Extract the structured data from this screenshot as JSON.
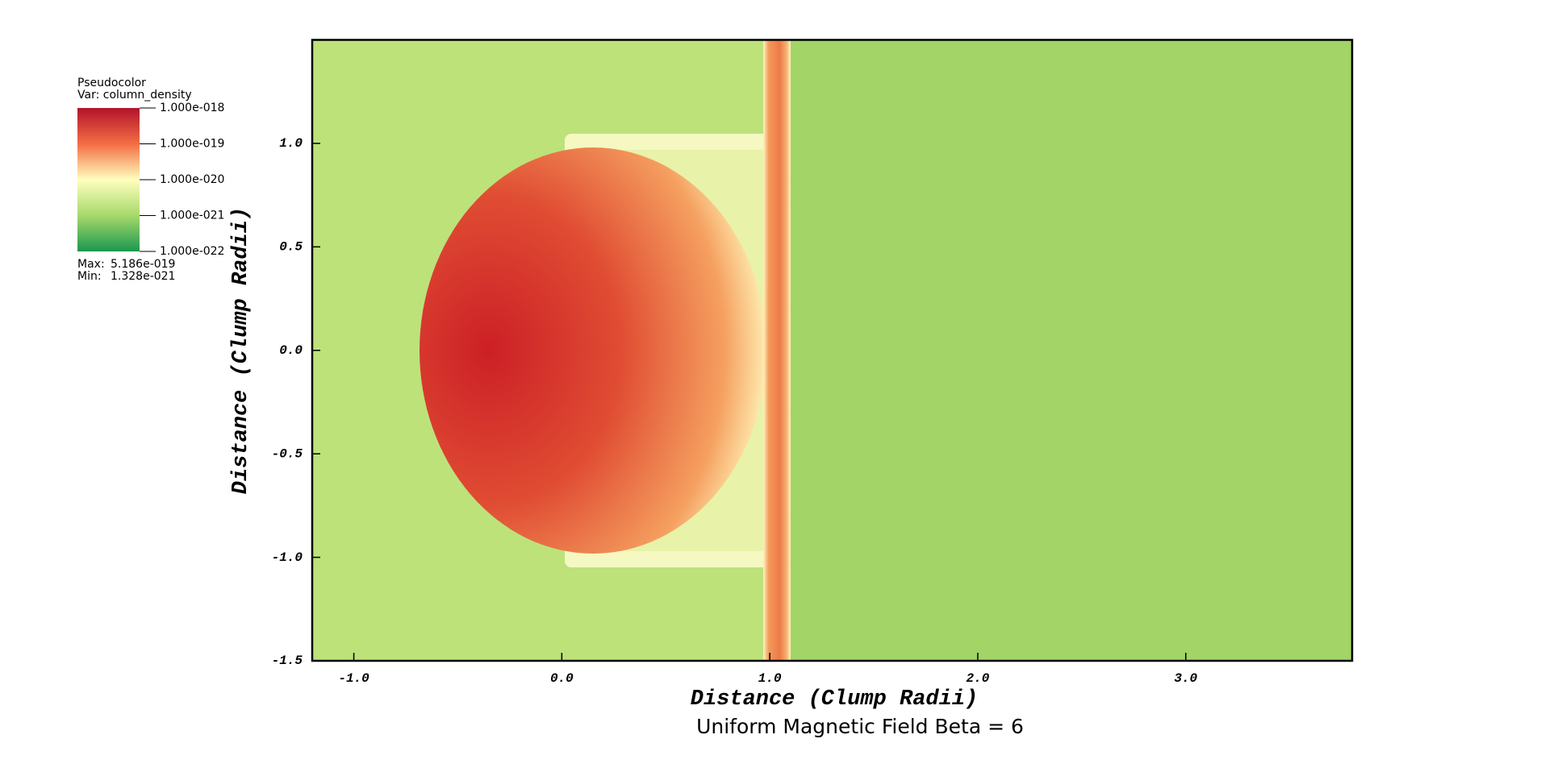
{
  "chart_data": {
    "type": "pseudocolor",
    "title": "Uniform Magnetic Field Beta = 6",
    "x_label": "Distance (Clump Radii)",
    "y_label": "Distance (Clump Radii)",
    "xlim": [
      -1.2,
      3.8
    ],
    "ylim": [
      -1.5,
      1.5
    ],
    "xticks": [
      {
        "value": -1,
        "label": "-1.0"
      },
      {
        "value": 0,
        "label": "0.0"
      },
      {
        "value": 1,
        "label": "1.0"
      },
      {
        "value": 2,
        "label": "2.0"
      },
      {
        "value": 3,
        "label": "3.0"
      }
    ],
    "yticks": [
      {
        "value": -1.5,
        "label": "-1.5"
      },
      {
        "value": -1,
        "label": "-1.0"
      },
      {
        "value": -0.5,
        "label": "-0.5"
      },
      {
        "value": 0,
        "label": "0.0"
      },
      {
        "value": 0.5,
        "label": "0.5"
      },
      {
        "value": 1,
        "label": "1.0"
      }
    ],
    "legend": {
      "plot": "Pseudocolor",
      "var": "Var: column_density",
      "log_scale": true,
      "range": [
        1e-22,
        1e-18
      ],
      "ticks": [
        {
          "value": 1e-18,
          "label": "1.000e-018"
        },
        {
          "value": 1e-19,
          "label": "1.000e-019"
        },
        {
          "value": 1e-20,
          "label": "1.000e-020"
        },
        {
          "value": 1e-21,
          "label": "1.000e-021"
        },
        {
          "value": 1e-22,
          "label": "1.000e-022"
        }
      ],
      "max_caption": "Max:",
      "max": {
        "value": 5.186e-19,
        "label": "5.186e-019"
      },
      "min_caption": "Min:",
      "min": {
        "value": 1.328e-21,
        "label": "1.328e-021"
      }
    }
  }
}
